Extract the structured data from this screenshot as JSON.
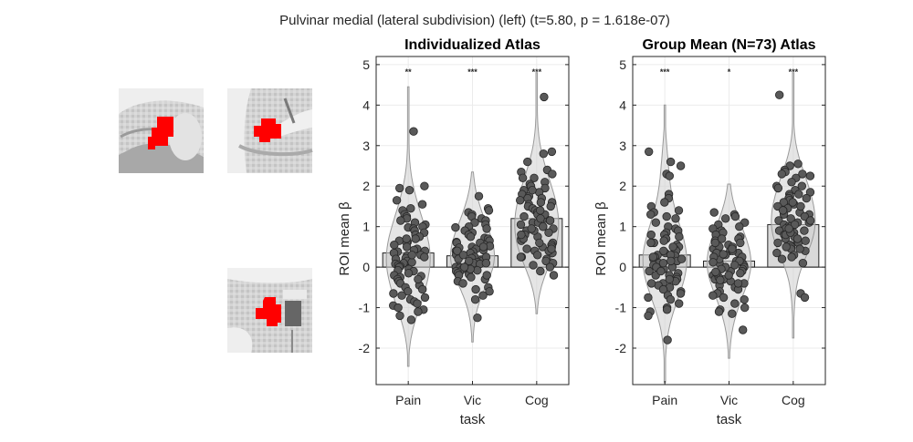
{
  "figure": {
    "suptitle": "Pulvinar medial (lateral subdivision) (left) (t=5.80, p = 1.618e-07)"
  },
  "colors": {
    "roi_fill": "#ff0000",
    "bar_fill": "#d9d9d9",
    "violin_fill": "#cfcfcf",
    "point_fill": "#595959",
    "point_edge": "#262626",
    "axis": "#262626",
    "grid": "#ebebeb"
  },
  "chart_data": [
    {
      "type": "bar",
      "title": "Individualized Atlas",
      "xlabel": "task",
      "ylabel": "ROI mean β",
      "ylim": [
        -2.9,
        5.2
      ],
      "yticks": [
        -2,
        -1,
        0,
        1,
        2,
        3,
        4,
        5
      ],
      "grid": true,
      "categories": [
        "Pain",
        "Vic",
        "Cog"
      ],
      "values": [
        0.35,
        0.28,
        1.2
      ],
      "significance": [
        "**",
        "***",
        "***"
      ],
      "violin_range": [
        [
          -2.45,
          4.45
        ],
        [
          -1.85,
          2.35
        ],
        [
          -1.15,
          4.8
        ]
      ],
      "series": [
        {
          "points": [
            3.35,
            2.0,
            1.95,
            1.9,
            1.65,
            1.55,
            1.45,
            1.4,
            1.3,
            1.25,
            1.2,
            1.15,
            1.1,
            1.05,
            1.0,
            0.98,
            0.95,
            0.9,
            0.85,
            0.8,
            0.75,
            0.7,
            0.65,
            0.62,
            0.6,
            0.55,
            0.5,
            0.45,
            0.42,
            0.4,
            0.38,
            0.35,
            0.3,
            0.28,
            0.25,
            0.22,
            0.2,
            0.15,
            0.12,
            0.1,
            0.08,
            0.05,
            0.02,
            0.0,
            -0.05,
            -0.08,
            -0.1,
            -0.15,
            -0.2,
            -0.22,
            -0.25,
            -0.3,
            -0.35,
            -0.4,
            -0.45,
            -0.5,
            -0.55,
            -0.6,
            -0.65,
            -0.7,
            -0.75,
            -0.8,
            -0.85,
            -0.9,
            -0.95,
            -1.0,
            -1.05,
            -1.1,
            -1.2,
            -1.3,
            0.7,
            0.3,
            -0.3
          ]
        },
        {
          "points": [
            1.75,
            1.45,
            1.4,
            1.35,
            1.3,
            1.25,
            1.2,
            1.15,
            1.1,
            1.05,
            1.0,
            0.98,
            0.95,
            0.9,
            0.85,
            0.8,
            0.75,
            0.72,
            0.7,
            0.65,
            0.62,
            0.6,
            0.55,
            0.52,
            0.5,
            0.48,
            0.45,
            0.42,
            0.4,
            0.38,
            0.35,
            0.32,
            0.3,
            0.28,
            0.25,
            0.22,
            0.2,
            0.18,
            0.15,
            0.12,
            0.1,
            0.08,
            0.05,
            0.02,
            0.0,
            -0.02,
            -0.05,
            -0.08,
            -0.1,
            -0.12,
            -0.15,
            -0.18,
            -0.2,
            -0.25,
            -0.3,
            -0.35,
            -0.4,
            -0.5,
            -0.55,
            -0.6,
            -0.7,
            -0.8,
            -1.25,
            0.6,
            0.4,
            0.25,
            0.1,
            -0.05,
            0.5,
            0.3,
            0.15,
            0.0,
            -0.2
          ]
        },
        {
          "points": [
            4.2,
            2.85,
            2.8,
            2.6,
            2.4,
            2.35,
            2.3,
            2.2,
            2.1,
            2.05,
            2.0,
            1.95,
            1.9,
            1.85,
            1.8,
            1.75,
            1.7,
            1.65,
            1.6,
            1.55,
            1.5,
            1.45,
            1.4,
            1.35,
            1.3,
            1.25,
            1.2,
            1.15,
            1.1,
            1.05,
            1.0,
            0.95,
            0.9,
            0.85,
            0.8,
            0.75,
            0.7,
            0.65,
            0.6,
            0.55,
            0.5,
            0.45,
            0.4,
            0.35,
            0.3,
            0.25,
            0.2,
            0.15,
            0.1,
            0.05,
            0.0,
            -0.1,
            -0.2,
            1.7,
            1.5,
            1.3,
            1.1,
            0.9,
            0.7,
            0.5,
            1.6,
            1.4,
            1.2,
            1.0,
            0.8,
            0.6,
            0.4,
            2.2,
            1.9,
            1.15,
            0.95,
            0.45,
            0.25
          ]
        }
      ]
    },
    {
      "type": "bar",
      "title": "Group Mean (N=73) Atlas",
      "xlabel": "task",
      "ylabel": "ROI mean β",
      "ylim": [
        -2.9,
        5.2
      ],
      "yticks": [
        -2,
        -1,
        0,
        1,
        2,
        3,
        4,
        5
      ],
      "grid": true,
      "categories": [
        "Pain",
        "Vic",
        "Cog"
      ],
      "values": [
        0.3,
        0.15,
        1.05
      ],
      "significance": [
        "***",
        "*",
        "***"
      ],
      "violin_range": [
        [
          -2.85,
          4.0
        ],
        [
          -2.25,
          2.05
        ],
        [
          -1.75,
          4.8
        ]
      ],
      "series": [
        {
          "points": [
            2.85,
            2.6,
            2.5,
            2.3,
            2.25,
            1.8,
            1.7,
            1.6,
            1.5,
            1.4,
            1.35,
            1.3,
            1.25,
            1.2,
            1.1,
            1.0,
            0.95,
            0.9,
            0.85,
            0.8,
            0.75,
            0.7,
            0.65,
            0.6,
            0.55,
            0.5,
            0.45,
            0.4,
            0.35,
            0.3,
            0.28,
            0.25,
            0.2,
            0.15,
            0.1,
            0.05,
            0.0,
            -0.05,
            -0.1,
            -0.15,
            -0.2,
            -0.25,
            -0.3,
            -0.35,
            -0.4,
            -0.45,
            -0.5,
            -0.55,
            -0.6,
            -0.65,
            -0.7,
            -0.75,
            -0.8,
            -0.9,
            -1.0,
            -1.05,
            -1.1,
            -1.2,
            -1.8,
            0.4,
            0.2,
            0.0,
            -0.2,
            0.6,
            0.3,
            0.1,
            -0.3,
            0.8,
            0.5,
            -0.1,
            0.25,
            0.15,
            -0.4
          ]
        },
        {
          "points": [
            1.35,
            1.3,
            1.25,
            1.2,
            1.1,
            1.05,
            1.0,
            0.95,
            0.9,
            0.85,
            0.8,
            0.75,
            0.7,
            0.65,
            0.6,
            0.55,
            0.5,
            0.45,
            0.4,
            0.35,
            0.3,
            0.25,
            0.2,
            0.15,
            0.1,
            0.05,
            0.0,
            -0.05,
            -0.1,
            -0.15,
            -0.2,
            -0.25,
            -0.3,
            -0.35,
            -0.4,
            -0.45,
            -0.5,
            -0.55,
            -0.6,
            -0.65,
            -0.7,
            -0.75,
            -0.8,
            -0.9,
            -1.0,
            -1.05,
            -1.1,
            -1.15,
            -1.55,
            0.5,
            0.3,
            0.1,
            -0.1,
            -0.3,
            0.4,
            0.2,
            0.0,
            -0.2,
            0.6,
            0.35,
            0.15,
            -0.05,
            -0.25,
            0.25,
            0.05,
            -0.15,
            0.45,
            -0.4,
            0.7,
            0.12,
            -0.12,
            0.32,
            -0.32
          ]
        },
        {
          "points": [
            4.25,
            2.55,
            2.5,
            2.4,
            2.35,
            2.3,
            2.25,
            2.2,
            2.1,
            2.0,
            1.95,
            1.9,
            1.85,
            1.8,
            1.75,
            1.7,
            1.65,
            1.6,
            1.55,
            1.5,
            1.45,
            1.4,
            1.35,
            1.3,
            1.25,
            1.2,
            1.15,
            1.1,
            1.05,
            1.0,
            0.95,
            0.9,
            0.85,
            0.8,
            0.75,
            0.7,
            0.65,
            0.6,
            0.55,
            0.5,
            0.45,
            0.4,
            0.35,
            0.3,
            0.25,
            0.2,
            0.1,
            -0.65,
            -0.75,
            1.6,
            1.4,
            1.2,
            1.0,
            0.8,
            0.6,
            1.7,
            1.5,
            1.3,
            1.1,
            0.9,
            0.7,
            0.5,
            2.3,
            2.0,
            1.8,
            1.25,
            1.05,
            0.85,
            0.65,
            0.45,
            1.95,
            1.15,
            0.95
          ]
        }
      ]
    }
  ]
}
